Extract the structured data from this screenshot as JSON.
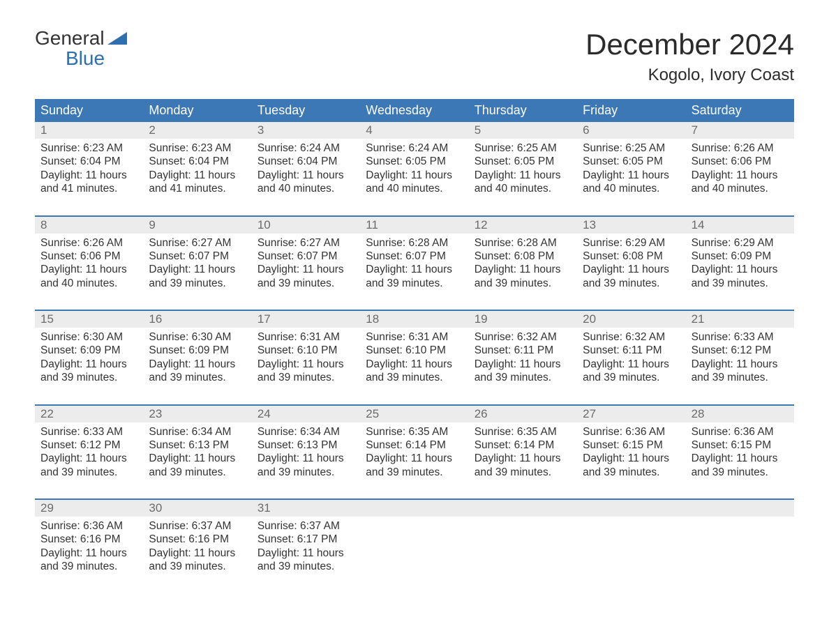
{
  "logo": {
    "word1": "General",
    "word2": "Blue",
    "accent_color": "#2f6fb0"
  },
  "title": "December 2024",
  "location": "Kogolo, Ivory Coast",
  "colors": {
    "header_bg": "#3b78b5",
    "header_text": "#ffffff",
    "daynum_bg": "#ececec",
    "daynum_text": "#6b6b6b",
    "body_text": "#333333",
    "week_divider": "#3b78b5",
    "page_bg": "#ffffff"
  },
  "typography": {
    "title_fontsize": 42,
    "location_fontsize": 24,
    "header_fontsize": 18,
    "daynum_fontsize": 17,
    "body_fontsize": 15.5,
    "logo_fontsize": 28
  },
  "layout": {
    "columns": 7,
    "rows": 5
  },
  "headers": [
    "Sunday",
    "Monday",
    "Tuesday",
    "Wednesday",
    "Thursday",
    "Friday",
    "Saturday"
  ],
  "labels": {
    "sunrise": "Sunrise:",
    "sunset": "Sunset:",
    "daylight_prefix": "Daylight:",
    "daylight_join": "and"
  },
  "days": [
    {
      "n": "1",
      "sunrise": "6:23 AM",
      "sunset": "6:04 PM",
      "dl_h": "11 hours",
      "dl_m": "41 minutes."
    },
    {
      "n": "2",
      "sunrise": "6:23 AM",
      "sunset": "6:04 PM",
      "dl_h": "11 hours",
      "dl_m": "41 minutes."
    },
    {
      "n": "3",
      "sunrise": "6:24 AM",
      "sunset": "6:04 PM",
      "dl_h": "11 hours",
      "dl_m": "40 minutes."
    },
    {
      "n": "4",
      "sunrise": "6:24 AM",
      "sunset": "6:05 PM",
      "dl_h": "11 hours",
      "dl_m": "40 minutes."
    },
    {
      "n": "5",
      "sunrise": "6:25 AM",
      "sunset": "6:05 PM",
      "dl_h": "11 hours",
      "dl_m": "40 minutes."
    },
    {
      "n": "6",
      "sunrise": "6:25 AM",
      "sunset": "6:05 PM",
      "dl_h": "11 hours",
      "dl_m": "40 minutes."
    },
    {
      "n": "7",
      "sunrise": "6:26 AM",
      "sunset": "6:06 PM",
      "dl_h": "11 hours",
      "dl_m": "40 minutes."
    },
    {
      "n": "8",
      "sunrise": "6:26 AM",
      "sunset": "6:06 PM",
      "dl_h": "11 hours",
      "dl_m": "40 minutes."
    },
    {
      "n": "9",
      "sunrise": "6:27 AM",
      "sunset": "6:07 PM",
      "dl_h": "11 hours",
      "dl_m": "39 minutes."
    },
    {
      "n": "10",
      "sunrise": "6:27 AM",
      "sunset": "6:07 PM",
      "dl_h": "11 hours",
      "dl_m": "39 minutes."
    },
    {
      "n": "11",
      "sunrise": "6:28 AM",
      "sunset": "6:07 PM",
      "dl_h": "11 hours",
      "dl_m": "39 minutes."
    },
    {
      "n": "12",
      "sunrise": "6:28 AM",
      "sunset": "6:08 PM",
      "dl_h": "11 hours",
      "dl_m": "39 minutes."
    },
    {
      "n": "13",
      "sunrise": "6:29 AM",
      "sunset": "6:08 PM",
      "dl_h": "11 hours",
      "dl_m": "39 minutes."
    },
    {
      "n": "14",
      "sunrise": "6:29 AM",
      "sunset": "6:09 PM",
      "dl_h": "11 hours",
      "dl_m": "39 minutes."
    },
    {
      "n": "15",
      "sunrise": "6:30 AM",
      "sunset": "6:09 PM",
      "dl_h": "11 hours",
      "dl_m": "39 minutes."
    },
    {
      "n": "16",
      "sunrise": "6:30 AM",
      "sunset": "6:09 PM",
      "dl_h": "11 hours",
      "dl_m": "39 minutes."
    },
    {
      "n": "17",
      "sunrise": "6:31 AM",
      "sunset": "6:10 PM",
      "dl_h": "11 hours",
      "dl_m": "39 minutes."
    },
    {
      "n": "18",
      "sunrise": "6:31 AM",
      "sunset": "6:10 PM",
      "dl_h": "11 hours",
      "dl_m": "39 minutes."
    },
    {
      "n": "19",
      "sunrise": "6:32 AM",
      "sunset": "6:11 PM",
      "dl_h": "11 hours",
      "dl_m": "39 minutes."
    },
    {
      "n": "20",
      "sunrise": "6:32 AM",
      "sunset": "6:11 PM",
      "dl_h": "11 hours",
      "dl_m": "39 minutes."
    },
    {
      "n": "21",
      "sunrise": "6:33 AM",
      "sunset": "6:12 PM",
      "dl_h": "11 hours",
      "dl_m": "39 minutes."
    },
    {
      "n": "22",
      "sunrise": "6:33 AM",
      "sunset": "6:12 PM",
      "dl_h": "11 hours",
      "dl_m": "39 minutes."
    },
    {
      "n": "23",
      "sunrise": "6:34 AM",
      "sunset": "6:13 PM",
      "dl_h": "11 hours",
      "dl_m": "39 minutes."
    },
    {
      "n": "24",
      "sunrise": "6:34 AM",
      "sunset": "6:13 PM",
      "dl_h": "11 hours",
      "dl_m": "39 minutes."
    },
    {
      "n": "25",
      "sunrise": "6:35 AM",
      "sunset": "6:14 PM",
      "dl_h": "11 hours",
      "dl_m": "39 minutes."
    },
    {
      "n": "26",
      "sunrise": "6:35 AM",
      "sunset": "6:14 PM",
      "dl_h": "11 hours",
      "dl_m": "39 minutes."
    },
    {
      "n": "27",
      "sunrise": "6:36 AM",
      "sunset": "6:15 PM",
      "dl_h": "11 hours",
      "dl_m": "39 minutes."
    },
    {
      "n": "28",
      "sunrise": "6:36 AM",
      "sunset": "6:15 PM",
      "dl_h": "11 hours",
      "dl_m": "39 minutes."
    },
    {
      "n": "29",
      "sunrise": "6:36 AM",
      "sunset": "6:16 PM",
      "dl_h": "11 hours",
      "dl_m": "39 minutes."
    },
    {
      "n": "30",
      "sunrise": "6:37 AM",
      "sunset": "6:16 PM",
      "dl_h": "11 hours",
      "dl_m": "39 minutes."
    },
    {
      "n": "31",
      "sunrise": "6:37 AM",
      "sunset": "6:17 PM",
      "dl_h": "11 hours",
      "dl_m": "39 minutes."
    }
  ]
}
